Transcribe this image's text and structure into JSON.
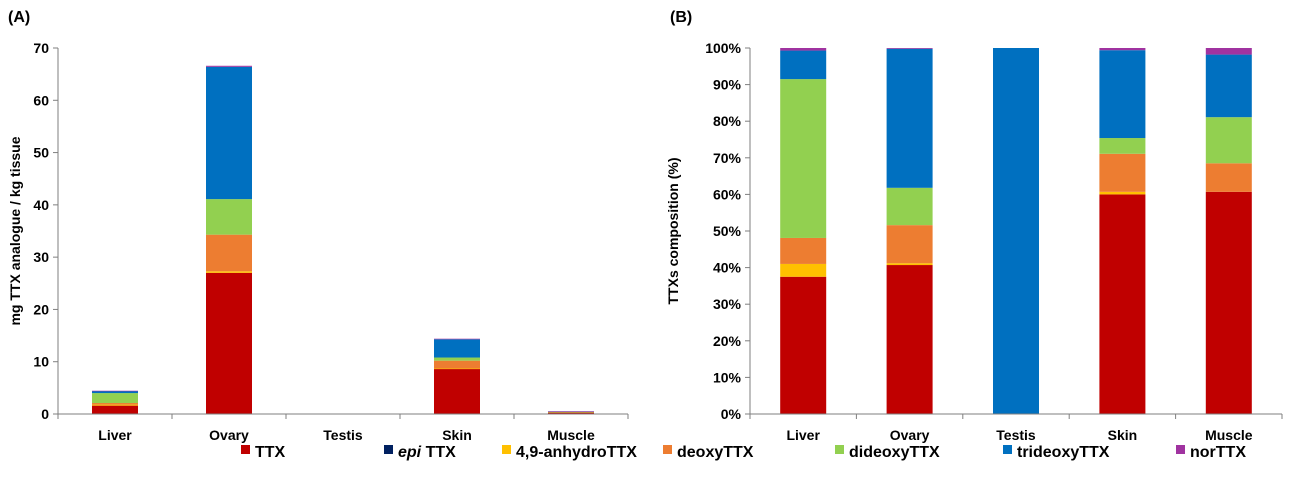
{
  "series_names": [
    "TTX",
    "epi TTX",
    "4,9-anhydroTTX",
    "deoxyTTX",
    "dideoxyTTX",
    "trideoxyTTX",
    "norTTX"
  ],
  "legend": [
    {
      "prefix": "",
      "italic": "",
      "rest": "TTX"
    },
    {
      "prefix": "",
      "italic": "epi",
      "rest": " TTX"
    },
    {
      "prefix": "",
      "italic": "",
      "rest": "4,9-anhydroTTX"
    },
    {
      "prefix": "",
      "italic": "",
      "rest": "deoxyTTX"
    },
    {
      "prefix": "",
      "italic": "",
      "rest": "dideoxyTTX"
    },
    {
      "prefix": "",
      "italic": "",
      "rest": "trideoxyTTX"
    },
    {
      "prefix": "",
      "italic": "",
      "rest": "norTTX"
    }
  ],
  "colors": [
    "#c00000",
    "#002060",
    "#ffc000",
    "#ed7d31",
    "#92d050",
    "#0070c0",
    "#a033a0"
  ],
  "chart_data": [
    {
      "panel_label": "(A)",
      "type": "bar",
      "stacked": true,
      "categories": [
        "Liver",
        "Ovary",
        "Testis",
        "Skin",
        "Muscle"
      ],
      "ylabel": "mg TTX analogue / kg tissue",
      "ylim": [
        0,
        70
      ],
      "yticks": [
        0,
        10,
        20,
        30,
        40,
        50,
        60,
        70
      ],
      "ytick_labels": [
        "0",
        "10",
        "20",
        "30",
        "40",
        "50",
        "60",
        "70"
      ],
      "series": [
        {
          "name": "TTX",
          "values": [
            1.6,
            27.0,
            0,
            8.6,
            0.3
          ]
        },
        {
          "name": "epi TTX",
          "values": [
            0,
            0,
            0,
            0,
            0
          ]
        },
        {
          "name": "4,9-anhydroTTX",
          "values": [
            0.2,
            0.3,
            0,
            0.1,
            0
          ]
        },
        {
          "name": "deoxyTTX",
          "values": [
            0.3,
            7.0,
            0,
            1.5,
            0.04
          ]
        },
        {
          "name": "dideoxyTTX",
          "values": [
            1.9,
            6.8,
            0,
            0.6,
            0.07
          ]
        },
        {
          "name": "trideoxyTTX",
          "values": [
            0.4,
            25.3,
            0,
            3.5,
            0.09
          ]
        },
        {
          "name": "norTTX",
          "values": [
            0.05,
            0.2,
            0,
            0.1,
            0.01
          ]
        }
      ]
    },
    {
      "panel_label": "(B)",
      "type": "bar",
      "stacked": true,
      "percent": true,
      "categories": [
        "Liver",
        "Ovary",
        "Testis",
        "Skin",
        "Muscle"
      ],
      "ylabel": "TTXs  composition (%)",
      "ylim": [
        0,
        100
      ],
      "yticks": [
        0,
        10,
        20,
        30,
        40,
        50,
        60,
        70,
        80,
        90,
        100
      ],
      "ytick_labels": [
        "0%",
        "10%",
        "20%",
        "30%",
        "40%",
        "50%",
        "60%",
        "70%",
        "80%",
        "90%",
        "100%"
      ],
      "series": [
        {
          "name": "TTX",
          "values": [
            37.5,
            40.7,
            0,
            60.0,
            60.7
          ]
        },
        {
          "name": "epi TTX",
          "values": [
            0,
            0,
            0,
            0,
            0
          ]
        },
        {
          "name": "4,9-anhydroTTX",
          "values": [
            3.5,
            0.5,
            0,
            0.7,
            0
          ]
        },
        {
          "name": "deoxyTTX",
          "values": [
            7.1,
            10.4,
            0,
            10.4,
            7.8
          ]
        },
        {
          "name": "dideoxyTTX",
          "values": [
            43.4,
            10.2,
            0,
            4.3,
            12.6
          ]
        },
        {
          "name": "trideoxyTTX",
          "values": [
            7.8,
            38.0,
            100,
            24.0,
            17.1
          ]
        },
        {
          "name": "norTTX",
          "values": [
            0.7,
            0.2,
            0,
            0.6,
            1.8
          ]
        }
      ]
    }
  ]
}
